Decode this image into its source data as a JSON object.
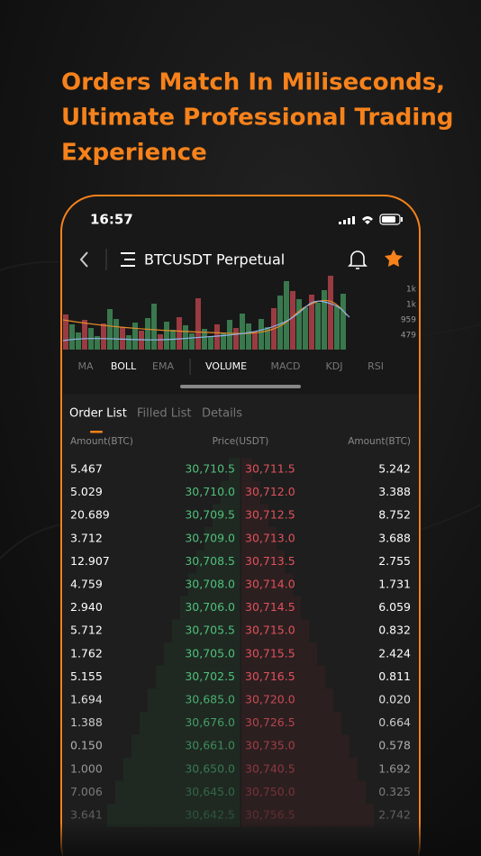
{
  "headline": {
    "lines": [
      "Orders Match In Miliseconds,",
      "Ultimate Professional Trading",
      "Experience"
    ]
  },
  "status_bar": {
    "time": "16:57"
  },
  "nav": {
    "title": "BTCUSDT Perpetual"
  },
  "chart": {
    "axis_labels": [
      "1k",
      "1k",
      "959",
      "479"
    ],
    "indicators": [
      "MA",
      "BOLL",
      "EMA",
      "VOLUME",
      "MACD",
      "KDJ",
      "RSI"
    ]
  },
  "tabs": [
    "Order List",
    "Filled List",
    "Details"
  ],
  "order_book": {
    "headers": [
      "Amount(BTC)",
      "Price(USDT)",
      "Amount(BTC)"
    ],
    "rows": [
      [
        "5.467",
        "30,710.5",
        "30,711.5",
        "5.242"
      ],
      [
        "5.029",
        "30,710.0",
        "30,712.0",
        "3.388"
      ],
      [
        "20.689",
        "30,709.5",
        "30,712.5",
        "8.752"
      ],
      [
        "3.712",
        "30,709.0",
        "30,713.0",
        "3.688"
      ],
      [
        "12.907",
        "30,708.5",
        "30,713.5",
        "2.755"
      ],
      [
        "4.759",
        "30,708.0",
        "30,714.0",
        "1.731"
      ],
      [
        "2.940",
        "30,706.0",
        "30,714.5",
        "6.059"
      ],
      [
        "5.712",
        "30,705.5",
        "30,715.0",
        "0.832"
      ],
      [
        "1.762",
        "30,705.0",
        "30,715.5",
        "2.424"
      ],
      [
        "5.155",
        "30,702.5",
        "30,716.5",
        "0.811"
      ],
      [
        "1.694",
        "30,685.0",
        "30,720.0",
        "0.020"
      ],
      [
        "1.388",
        "30,676.0",
        "30,726.5",
        "0.664"
      ],
      [
        "0.150",
        "30,661.0",
        "30,735.0",
        "0.578"
      ],
      [
        "1.000",
        "30,650.0",
        "30,740.5",
        "1.692"
      ],
      [
        "7.006",
        "30,645.0",
        "30,750.0",
        "0.325"
      ],
      [
        "3.641",
        "30,642.5",
        "30,756.5",
        "2.742"
      ]
    ]
  }
}
